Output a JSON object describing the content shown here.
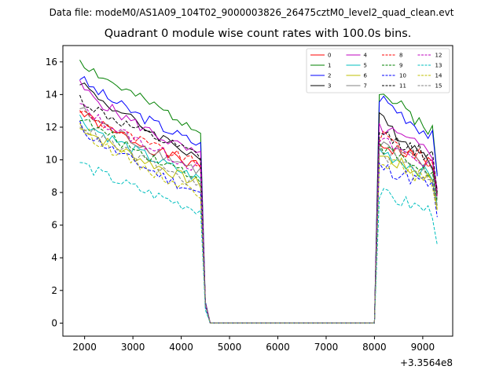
{
  "suptitle": "Data file: modeM0/AS1A09_104T02_9000003826_26475cztM0_level2_quad_clean.evt",
  "chart_data": {
    "type": "line",
    "title": "Quadrant 0 module wise count rates with 100.0s bins.",
    "xlabel": "",
    "ylabel": "",
    "x_offset_label": "+3.3564e8",
    "xlim": [
      1550,
      9620
    ],
    "ylim": [
      -0.8,
      17.0
    ],
    "xticks": [
      2000,
      3000,
      4000,
      5000,
      6000,
      7000,
      8000,
      9000
    ],
    "xtick_labels": [
      "2000",
      "3000",
      "4000",
      "5000",
      "6000",
      "7000",
      "8000",
      "9000"
    ],
    "yticks": [
      0,
      2,
      4,
      6,
      8,
      10,
      12,
      14,
      16
    ],
    "ytick_labels": [
      "0",
      "2",
      "4",
      "6",
      "8",
      "10",
      "12",
      "14",
      "16"
    ],
    "legend": {
      "placement": "top-right",
      "columns": 4
    },
    "x_segments": [
      [
        1900,
        4400
      ],
      [
        4400,
        4500,
        4600
      ],
      [
        8000,
        8100
      ],
      [
        8100,
        9300
      ]
    ],
    "series": [
      {
        "name": "0",
        "color": "#ff0000",
        "dash": "solid",
        "start": 13.0,
        "end": 9.5,
        "plateau2": [
          11.0,
          9.7
        ],
        "tail": 7.8,
        "drop_mid": 1.2,
        "seed": 1
      },
      {
        "name": "1",
        "color": "#008000",
        "dash": "solid",
        "start": 16.2,
        "end": 11.9,
        "plateau2": [
          14.2,
          11.8
        ],
        "tail": 9.1,
        "drop_mid": 1.3,
        "seed": 2
      },
      {
        "name": "2",
        "color": "#0000ff",
        "dash": "solid",
        "start": 15.1,
        "end": 10.9,
        "plateau2": [
          13.9,
          11.4
        ],
        "tail": 9.0,
        "drop_mid": 1.3,
        "seed": 3
      },
      {
        "name": "3",
        "color": "#000000",
        "dash": "solid",
        "start": 14.9,
        "end": 10.1,
        "plateau2": [
          12.5,
          9.9
        ],
        "tail": 7.9,
        "drop_mid": 1.2,
        "seed": 4
      },
      {
        "name": "4",
        "color": "#bf00bf",
        "dash": "solid",
        "start": 14.6,
        "end": 10.2,
        "plateau2": [
          12.0,
          10.4
        ],
        "tail": 8.2,
        "drop_mid": 1.2,
        "seed": 5
      },
      {
        "name": "5",
        "color": "#00bfbf",
        "dash": "solid",
        "start": 12.6,
        "end": 8.8,
        "plateau2": [
          10.6,
          9.0
        ],
        "tail": 7.2,
        "drop_mid": 1.1,
        "seed": 6
      },
      {
        "name": "6",
        "color": "#bfbf00",
        "dash": "solid",
        "start": 12.2,
        "end": 8.5,
        "plateau2": [
          10.3,
          8.8
        ],
        "tail": 7.0,
        "drop_mid": 1.1,
        "seed": 7
      },
      {
        "name": "7",
        "color": "#808080",
        "dash": "solid",
        "start": 13.2,
        "end": 9.3,
        "plateau2": [
          11.0,
          9.4
        ],
        "tail": 7.6,
        "drop_mid": 1.2,
        "seed": 8
      },
      {
        "name": "8",
        "color": "#ff0000",
        "dash": "dashed",
        "start": 13.1,
        "end": 9.7,
        "plateau2": [
          11.5,
          9.8
        ],
        "tail": 7.9,
        "drop_mid": 1.2,
        "seed": 9
      },
      {
        "name": "9",
        "color": "#008000",
        "dash": "dashed",
        "start": 12.7,
        "end": 8.9,
        "plateau2": [
          10.8,
          9.1
        ],
        "tail": 7.4,
        "drop_mid": 1.1,
        "seed": 10
      },
      {
        "name": "10",
        "color": "#0000ff",
        "dash": "dashed",
        "start": 12.1,
        "end": 7.9,
        "plateau2": [
          9.6,
          8.4
        ],
        "tail": 6.5,
        "drop_mid": 1.0,
        "seed": 11
      },
      {
        "name": "11",
        "color": "#000000",
        "dash": "dashed",
        "start": 13.8,
        "end": 10.2,
        "plateau2": [
          11.6,
          10.2
        ],
        "tail": 8.0,
        "drop_mid": 1.2,
        "seed": 12
      },
      {
        "name": "12",
        "color": "#bf00bf",
        "dash": "dashed",
        "start": 13.4,
        "end": 9.4,
        "plateau2": [
          11.2,
          9.6
        ],
        "tail": 7.7,
        "drop_mid": 1.2,
        "seed": 13
      },
      {
        "name": "13",
        "color": "#00bfbf",
        "dash": "dashed",
        "start": 9.9,
        "end": 6.9,
        "plateau2": [
          7.9,
          6.8
        ],
        "tail": 4.8,
        "drop_mid": 0.8,
        "seed": 14
      },
      {
        "name": "14",
        "color": "#bfbf00",
        "dash": "dashed",
        "start": 12.1,
        "end": 7.9,
        "plateau2": [
          10.1,
          8.6
        ],
        "tail": 6.9,
        "drop_mid": 1.1,
        "seed": 15
      },
      {
        "name": "15",
        "color": "#808080",
        "dash": "dashed",
        "start": 12.3,
        "end": 8.4,
        "plateau2": [
          10.5,
          9.0
        ],
        "tail": 7.2,
        "drop_mid": 1.1,
        "seed": 16
      }
    ]
  }
}
